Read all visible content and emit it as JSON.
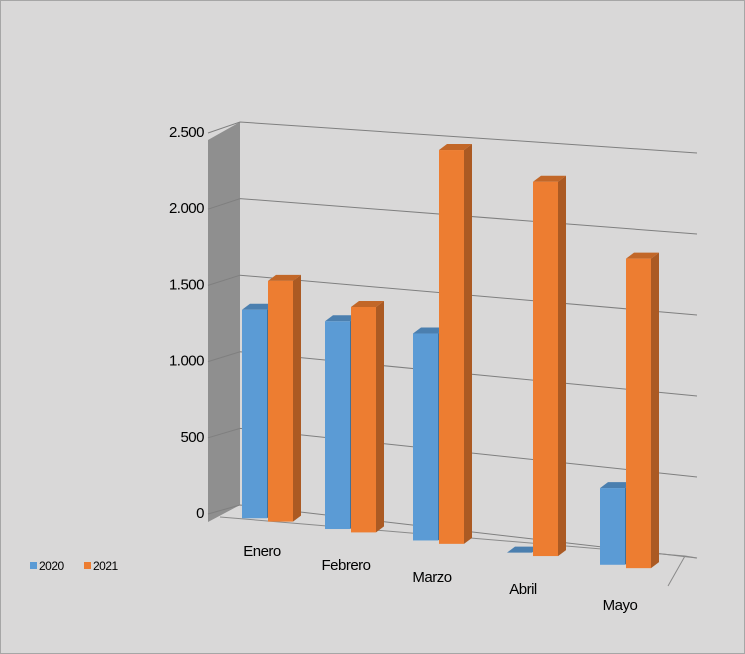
{
  "chart_data": {
    "type": "bar3d",
    "categories": [
      "Enero",
      "Febrero",
      "Marzo",
      "Abril",
      "Mayo"
    ],
    "series": [
      {
        "name": "2020",
        "color": "#5b9bd5",
        "values": [
          1400,
          1350,
          1300,
          0,
          450
        ]
      },
      {
        "name": "2021",
        "color": "#ed7d31",
        "values": [
          1600,
          1450,
          2450,
          2250,
          1800
        ]
      }
    ],
    "ylim": [
      0,
      2500
    ],
    "yticks": [
      0,
      500,
      {
        "value": 1000,
        "label": "1.000"
      },
      {
        "value": 1500,
        "label": "1.500"
      },
      {
        "value": 2000,
        "label": "2.000"
      },
      {
        "value": 2500,
        "label": "2.500"
      }
    ],
    "grid": true,
    "legend": "bottom-left"
  }
}
